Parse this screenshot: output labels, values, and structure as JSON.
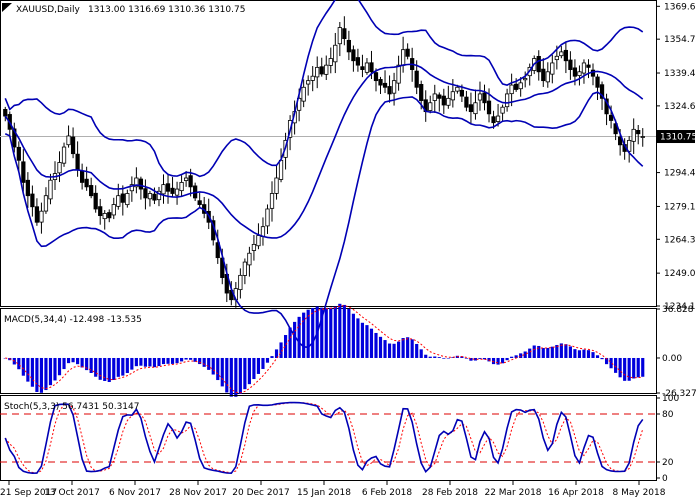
{
  "chart_data": {
    "type": "candlestick",
    "instrument": {
      "symbol_label": "XAUUSD,Daily",
      "ohlc_label": "1313.00 1316.69 1310.36 1310.75"
    },
    "price_panel": {
      "ylim": [
        1234.15,
        1372.0
      ],
      "yticks": [
        "1369.60",
        "1354.75",
        "1339.45",
        "1324.60",
        "1310.75",
        "1294.45",
        "1279.15",
        "1264.30",
        "1249.00",
        "1234.15"
      ],
      "last_price_label": "1310.75",
      "last_price": 1310.75,
      "indicators": [
        "Bollinger Bands (upper, middle, lower)"
      ]
    },
    "x_axis": {
      "labels": [
        "21 Sep 2017",
        "13 Oct 2017",
        "6 Nov 2017",
        "28 Nov 2017",
        "20 Dec 2017",
        "15 Jan 2018",
        "6 Feb 2018",
        "28 Feb 2018",
        "22 Mar 2018",
        "16 Apr 2018",
        "8 May 2018"
      ]
    },
    "price_path": [
      1320,
      1314,
      1306,
      1300,
      1290,
      1284,
      1279,
      1272,
      1277,
      1284,
      1291,
      1294,
      1299,
      1306,
      1311,
      1303,
      1296,
      1290,
      1288,
      1284,
      1278,
      1275,
      1276,
      1274,
      1280,
      1284,
      1281,
      1285,
      1289,
      1292,
      1287,
      1283,
      1285,
      1282,
      1286,
      1289,
      1286,
      1285,
      1287,
      1290,
      1292,
      1288,
      1283,
      1280,
      1276,
      1272,
      1264,
      1256,
      1247,
      1240,
      1237,
      1242,
      1248,
      1254,
      1258,
      1262,
      1266,
      1270,
      1278,
      1285,
      1292,
      1300,
      1309,
      1318,
      1322,
      1328,
      1333,
      1336,
      1338,
      1342,
      1339,
      1343,
      1346,
      1352,
      1360,
      1355,
      1349,
      1345,
      1343,
      1341,
      1344,
      1340,
      1336,
      1334,
      1333,
      1330,
      1336,
      1343,
      1350,
      1347,
      1341,
      1333,
      1327,
      1322,
      1326,
      1330,
      1328,
      1325,
      1328,
      1331,
      1333,
      1329,
      1324,
      1322,
      1326,
      1330,
      1326,
      1321,
      1317,
      1320,
      1324,
      1330,
      1334,
      1332,
      1335,
      1337,
      1342,
      1346,
      1340,
      1336,
      1340,
      1344,
      1347,
      1349,
      1345,
      1341,
      1338,
      1340,
      1344,
      1342,
      1338,
      1333,
      1328,
      1321,
      1318,
      1312,
      1307,
      1304,
      1309,
      1314,
      1312,
      1310.75
    ],
    "macd_panel": {
      "label": "MACD(5,34,4) -12.498 -13.535",
      "params": [
        5,
        34,
        4
      ],
      "values": [
        -12.498,
        -13.535
      ],
      "ylim": [
        -26.327,
        36.828
      ],
      "yticks": [
        "36.828",
        "0.00",
        "-26.327"
      ]
    },
    "stoch_panel": {
      "label": "Stoch(5,3,3) 56.7431 50.3147",
      "params": [
        5,
        3,
        3
      ],
      "values": [
        56.7431,
        50.3147
      ],
      "ylim": [
        0,
        100
      ],
      "yticks": [
        "100",
        "80",
        "20",
        "0"
      ],
      "levels": [
        80,
        20
      ]
    },
    "colors": {
      "candle": "#000000",
      "bands": "#0000b4",
      "macd_hist": "#0000dc",
      "macd_signal": "#ff0000",
      "stoch_main": "#0000b4",
      "stoch_signal": "#ff0000",
      "level_lines": "#dd0000",
      "last_price_line": "#b0b0b0"
    }
  }
}
